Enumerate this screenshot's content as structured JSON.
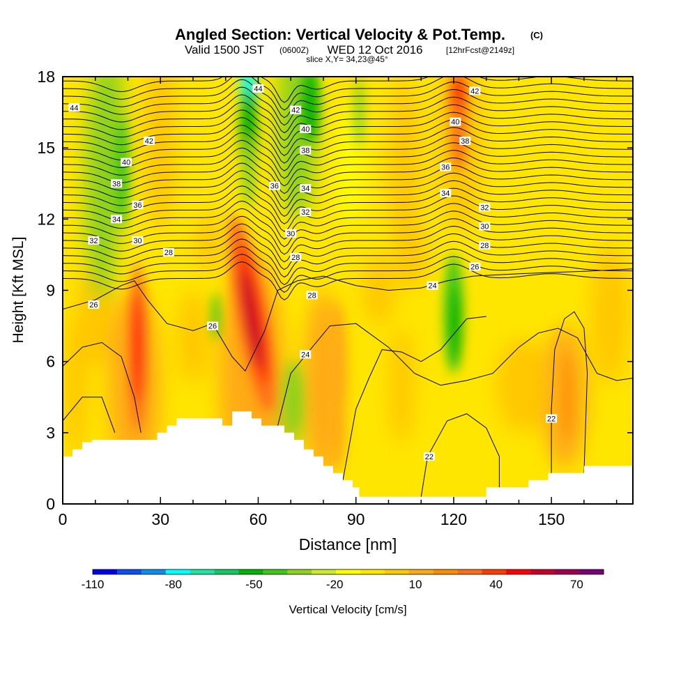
{
  "chart_data": {
    "type": "contour",
    "title": {
      "main": "Angled Section: Vertical Velocity & Pot.Temp.",
      "main_unit": "(C)",
      "valid_prefix": "Valid 1500 JST",
      "valid_utc": "(0600Z)",
      "valid_date": "WED 12 Oct 2016",
      "forecast_tag": "[12hrFcst@2149z]",
      "slice": "slice X,Y= 34,23@45°"
    },
    "xlabel": "Distance [nm]",
    "ylabel": "Height [Kft MSL]",
    "xlim": [
      0,
      175
    ],
    "ylim": [
      0,
      18
    ],
    "xticks": [
      0,
      30,
      60,
      90,
      120,
      150
    ],
    "yticks": [
      0,
      3,
      6,
      9,
      12,
      15,
      18
    ],
    "grid": false,
    "colorbar": {
      "label": "Vertical Velocity [cm/s]",
      "bounds": [
        -110,
        80
      ],
      "step": 10,
      "tick_values": [
        -110,
        -80,
        -50,
        -20,
        10,
        40,
        70
      ],
      "colors": [
        "#0000e6",
        "#0a50f0",
        "#0a8cf0",
        "#00ffff",
        "#1ee6a0",
        "#10c864",
        "#00b400",
        "#3cc814",
        "#8cd21e",
        "#c8ec28",
        "#ffff00",
        "#ffe600",
        "#ffc800",
        "#ffaa14",
        "#ff8c00",
        "#ff6e14",
        "#ff3c00",
        "#ff0000",
        "#c80028",
        "#a00050",
        "#780078"
      ]
    },
    "theta_label_values": [
      44,
      42,
      40,
      38,
      36,
      34,
      32,
      30,
      28,
      26,
      24,
      22
    ],
    "theta_labels": [
      {
        "text": "44",
        "x": 3.5,
        "y": 16.7
      },
      {
        "text": "44",
        "x": 60,
        "y": 17.5
      },
      {
        "text": "42",
        "x": 26.5,
        "y": 15.3
      },
      {
        "text": "40",
        "x": 19.5,
        "y": 14.4
      },
      {
        "text": "38",
        "x": 16.5,
        "y": 13.5
      },
      {
        "text": "36",
        "x": 23,
        "y": 12.6
      },
      {
        "text": "34",
        "x": 16.5,
        "y": 12
      },
      {
        "text": "32",
        "x": 9.5,
        "y": 11.1
      },
      {
        "text": "30",
        "x": 23,
        "y": 11.1
      },
      {
        "text": "28",
        "x": 32.5,
        "y": 10.6
      },
      {
        "text": "26",
        "x": 9.5,
        "y": 8.4
      },
      {
        "text": "26",
        "x": 46,
        "y": 7.5
      },
      {
        "text": "36",
        "x": 65,
        "y": 13.4
      },
      {
        "text": "42",
        "x": 71.5,
        "y": 16.6
      },
      {
        "text": "40",
        "x": 74.5,
        "y": 15.8
      },
      {
        "text": "38",
        "x": 74.5,
        "y": 14.9
      },
      {
        "text": "34",
        "x": 74.5,
        "y": 13.3
      },
      {
        "text": "32",
        "x": 74.5,
        "y": 12.3
      },
      {
        "text": "30",
        "x": 70,
        "y": 11.4
      },
      {
        "text": "28",
        "x": 71.5,
        "y": 10.4
      },
      {
        "text": "28",
        "x": 76.5,
        "y": 8.8
      },
      {
        "text": "24",
        "x": 74.5,
        "y": 6.3
      },
      {
        "text": "42",
        "x": 126.5,
        "y": 17.4
      },
      {
        "text": "40",
        "x": 120.5,
        "y": 16.1
      },
      {
        "text": "38",
        "x": 123.5,
        "y": 15.3
      },
      {
        "text": "36",
        "x": 117.5,
        "y": 14.2
      },
      {
        "text": "34",
        "x": 117.5,
        "y": 13.1
      },
      {
        "text": "32",
        "x": 129.5,
        "y": 12.5
      },
      {
        "text": "30",
        "x": 129.5,
        "y": 11.7
      },
      {
        "text": "28",
        "x": 129.5,
        "y": 10.9
      },
      {
        "text": "26",
        "x": 126.5,
        "y": 10
      },
      {
        "text": "24",
        "x": 113.5,
        "y": 9.2
      },
      {
        "text": "22",
        "x": 112.5,
        "y": 2
      },
      {
        "text": "22",
        "x": 150,
        "y": 3.6
      }
    ],
    "velocity_cores": [
      {
        "x": 23.5,
        "y": 6.5,
        "value": 70,
        "sign": "updraft"
      },
      {
        "x": 58,
        "y": 7.9,
        "value": 80,
        "sign": "updraft"
      },
      {
        "x": 57,
        "y": 17.6,
        "value": -80,
        "sign": "downdraft"
      },
      {
        "x": 121.5,
        "y": 17.0,
        "value": 50,
        "sign": "updraft"
      },
      {
        "x": 120,
        "y": 8.0,
        "value": -50,
        "sign": "downdraft"
      },
      {
        "x": 17,
        "y": 13.5,
        "value": -40,
        "sign": "downdraft"
      }
    ],
    "terrain": [
      [
        0,
        2
      ],
      [
        3,
        2
      ],
      [
        3,
        2.3
      ],
      [
        6,
        2.3
      ],
      [
        6,
        2.6
      ],
      [
        9,
        2.6
      ],
      [
        9,
        2.7
      ],
      [
        29,
        2.7
      ],
      [
        29,
        3.0
      ],
      [
        32,
        3.0
      ],
      [
        32,
        3.3
      ],
      [
        35,
        3.3
      ],
      [
        35,
        3.6
      ],
      [
        49,
        3.6
      ],
      [
        49,
        3.3
      ],
      [
        52,
        3.3
      ],
      [
        52,
        3.9
      ],
      [
        58,
        3.9
      ],
      [
        58,
        3.6
      ],
      [
        61,
        3.6
      ],
      [
        61,
        3.3
      ],
      [
        68,
        3.3
      ],
      [
        68,
        3.0
      ],
      [
        71,
        3.0
      ],
      [
        71,
        2.7
      ],
      [
        74,
        2.7
      ],
      [
        74,
        2.3
      ],
      [
        77,
        2.3
      ],
      [
        77,
        2.0
      ],
      [
        80,
        2.0
      ],
      [
        80,
        1.6
      ],
      [
        83,
        1.6
      ],
      [
        83,
        1.3
      ],
      [
        86,
        1.3
      ],
      [
        86,
        1.0
      ],
      [
        89,
        1.0
      ],
      [
        89,
        0.7
      ],
      [
        91,
        0.7
      ],
      [
        91,
        0.3
      ],
      [
        130,
        0.3
      ],
      [
        130,
        0.7
      ],
      [
        143,
        0.7
      ],
      [
        143,
        1.0
      ],
      [
        149,
        1.0
      ],
      [
        149,
        1.3
      ],
      [
        160,
        1.3
      ],
      [
        160,
        1.6
      ],
      [
        175,
        1.6
      ]
    ]
  }
}
